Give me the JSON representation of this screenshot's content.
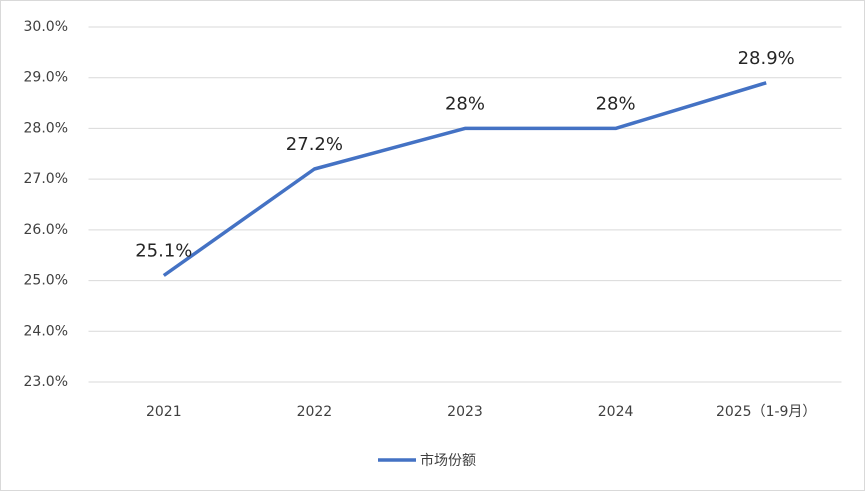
{
  "chart_data": {
    "type": "line",
    "categories": [
      "2021",
      "2022",
      "2023",
      "2024",
      "2025（1-9月）"
    ],
    "series": [
      {
        "name": "市场份额",
        "color": "#4472c4",
        "values": [
          25.1,
          27.2,
          28,
          28,
          28.9
        ],
        "value_labels": [
          "25.1%",
          "27.2%",
          "28%",
          "28%",
          "28.9%"
        ]
      }
    ],
    "ylim": [
      23,
      30
    ],
    "yticks": [
      {
        "value": 23,
        "label": "23.0%"
      },
      {
        "value": 24,
        "label": "24.0%"
      },
      {
        "value": 25,
        "label": "25.0%"
      },
      {
        "value": 26,
        "label": "26.0%"
      },
      {
        "value": 27,
        "label": "27.0%"
      },
      {
        "value": 28,
        "label": "28.0%"
      },
      {
        "value": 29,
        "label": "29.0%"
      },
      {
        "value": 30,
        "label": "30.0%"
      }
    ],
    "grid": true,
    "legend": "bottom"
  }
}
